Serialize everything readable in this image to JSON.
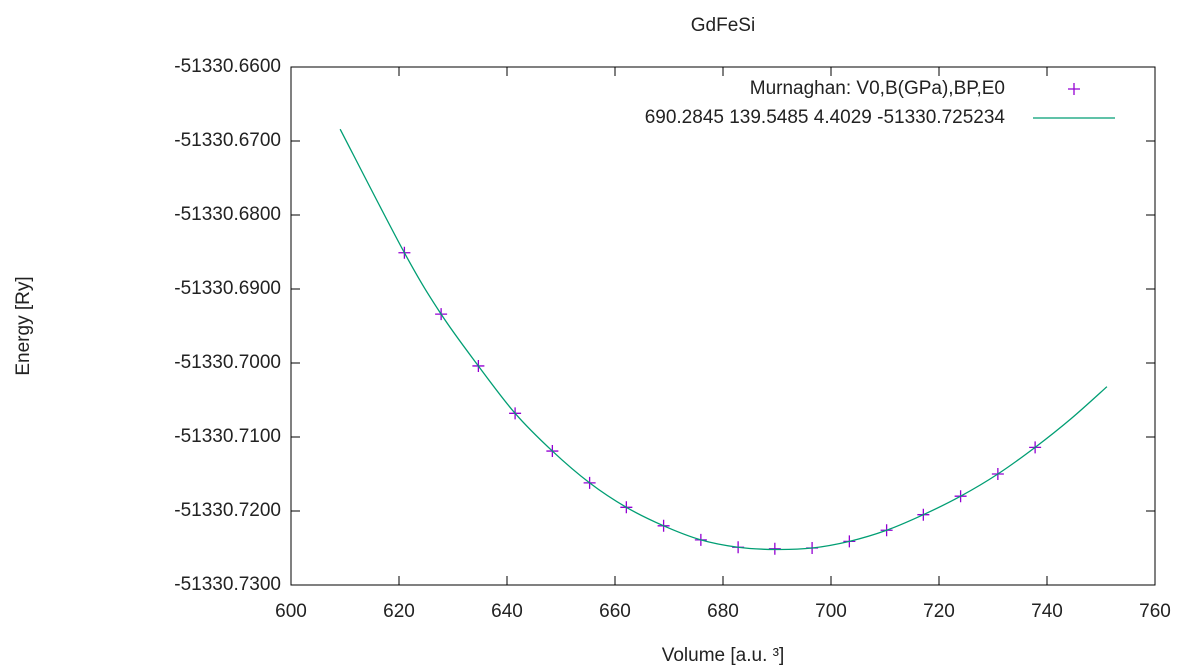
{
  "chart_data": {
    "type": "scatter",
    "title": "GdFeSi",
    "xlabel": "Volume [a.u. ³]",
    "ylabel": "Energy [Ry]",
    "xlim": [
      600,
      760
    ],
    "xticks": [
      600,
      620,
      640,
      660,
      680,
      700,
      720,
      740,
      760
    ],
    "ylim": [
      -51330.73,
      -51330.66
    ],
    "yticks": [
      {
        "value": -51330.73,
        "label": "-51330.7300"
      },
      {
        "value": -51330.72,
        "label": "-51330.7200"
      },
      {
        "value": -51330.71,
        "label": "-51330.7100"
      },
      {
        "value": -51330.7,
        "label": "-51330.7000"
      },
      {
        "value": -51330.69,
        "label": "-51330.6900"
      },
      {
        "value": -51330.68,
        "label": "-51330.6800"
      },
      {
        "value": -51330.67,
        "label": "-51330.6700"
      },
      {
        "value": -51330.66,
        "label": "-51330.6600"
      }
    ],
    "legend": "top right",
    "series": [
      {
        "name": "Murnaghan: V0,B(GPa),BP,E0",
        "type": "scatter",
        "color": "#9400d3",
        "x": [
          621.0,
          627.8,
          634.7,
          641.5,
          648.4,
          655.3,
          662.1,
          669.0,
          675.9,
          682.8,
          689.6,
          696.5,
          703.4,
          710.3,
          717.1,
          724.0,
          730.9,
          737.8
        ],
        "values": [
          -51330.6851,
          -51330.6934,
          -51330.7004,
          -51330.7068,
          -51330.7119,
          -51330.7162,
          -51330.7195,
          -51330.722,
          -51330.7239,
          -51330.7249,
          -51330.7251,
          -51330.725,
          -51330.7241,
          -51330.7226,
          -51330.7205,
          -51330.718,
          -51330.715,
          -51330.7114
        ]
      },
      {
        "name": "690.2845 139.5485 4.4029 -51330.725234",
        "type": "line",
        "color": "#009e73",
        "x": [
          609.1,
          621.0,
          627.8,
          634.7,
          641.5,
          648.4,
          655.3,
          662.1,
          669.0,
          675.9,
          682.8,
          689.6,
          696.5,
          703.4,
          710.3,
          717.1,
          724.0,
          730.9,
          737.8,
          744.5,
          751.1
        ],
        "values": [
          -51330.6684,
          -51330.6851,
          -51330.6934,
          -51330.7004,
          -51330.7068,
          -51330.7119,
          -51330.7162,
          -51330.7195,
          -51330.722,
          -51330.7239,
          -51330.7249,
          -51330.7252,
          -51330.725,
          -51330.7241,
          -51330.7226,
          -51330.7205,
          -51330.718,
          -51330.715,
          -51330.7114,
          -51330.7075,
          -51330.7032
        ]
      }
    ]
  }
}
